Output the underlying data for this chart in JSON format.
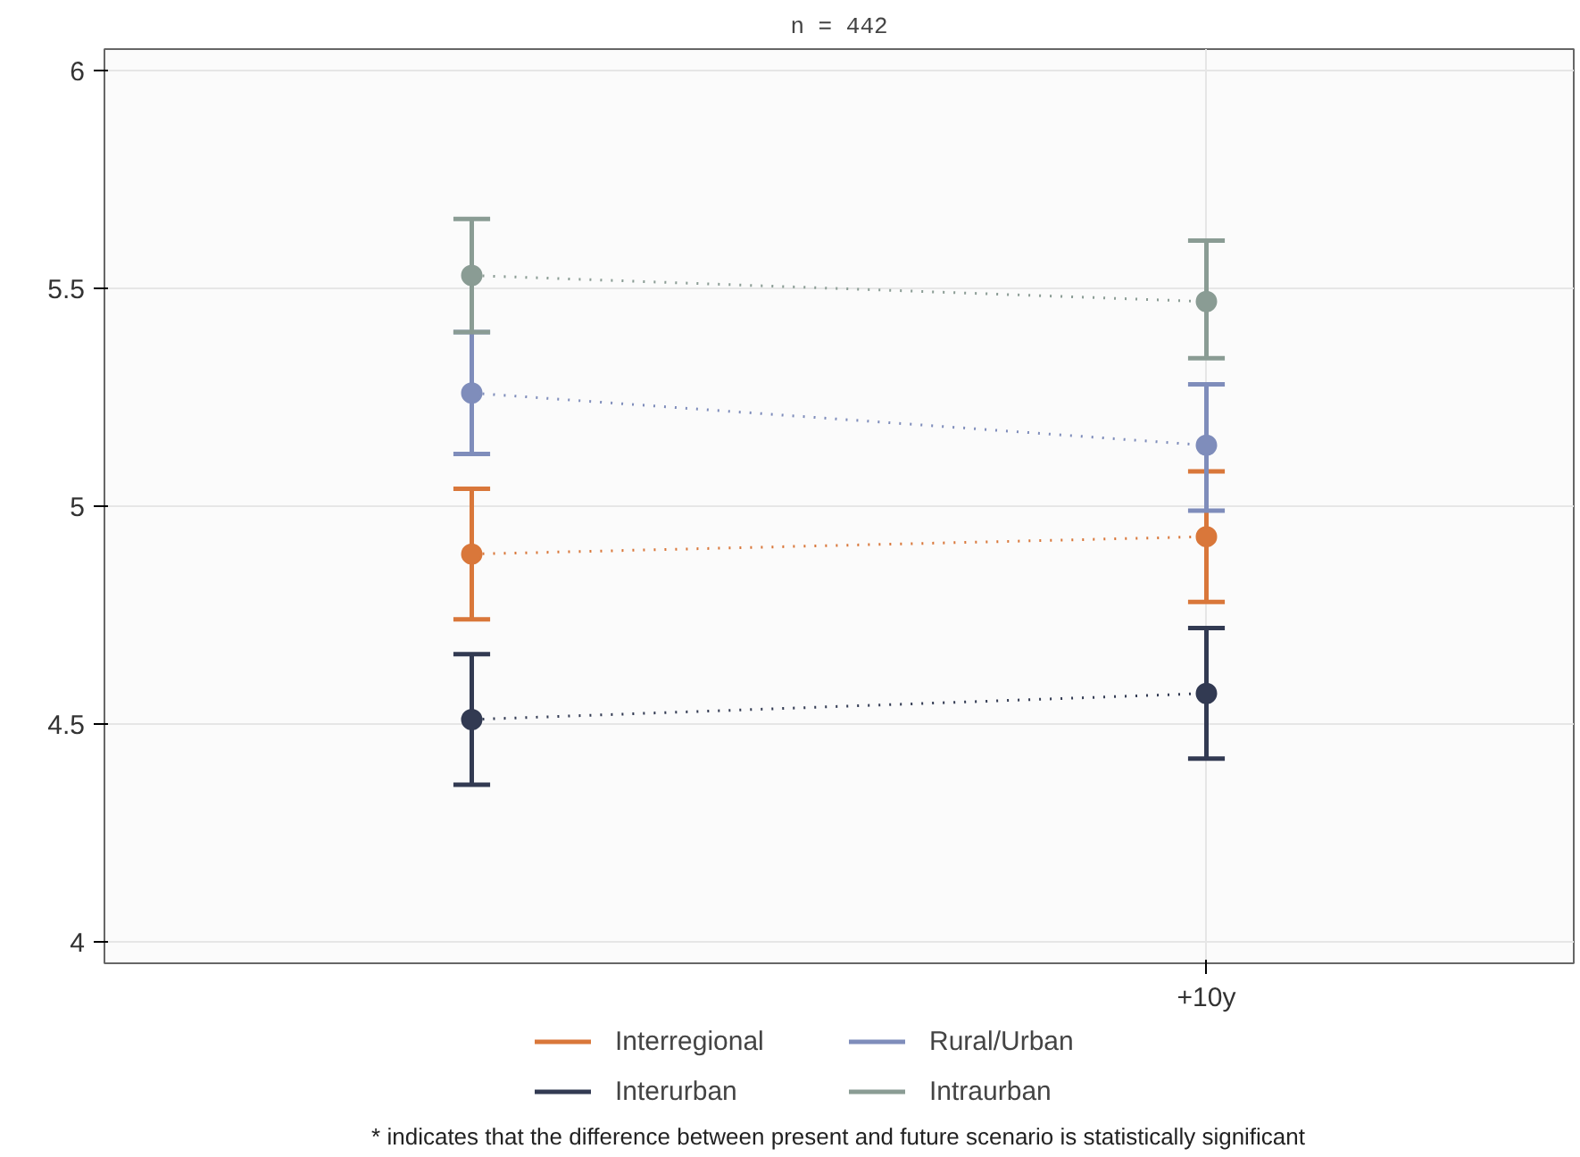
{
  "chart_data": {
    "type": "line",
    "title": "n = 442",
    "categories": [
      null,
      "+10y"
    ],
    "series": [
      {
        "name": "Interregional",
        "color": "#d9773a",
        "values": [
          4.89,
          4.93
        ],
        "errors": [
          [
            4.74,
            5.04
          ],
          [
            4.78,
            5.08
          ]
        ]
      },
      {
        "name": "Interurban",
        "color": "#323a52",
        "values": [
          4.51,
          4.57
        ],
        "errors": [
          [
            4.36,
            4.66
          ],
          [
            4.42,
            4.72
          ]
        ]
      },
      {
        "name": "Rural/Urban",
        "color": "#7f8dbb",
        "values": [
          5.26,
          5.14
        ],
        "errors": [
          [
            5.12,
            5.4
          ],
          [
            4.99,
            5.28
          ]
        ]
      },
      {
        "name": "Intraurban",
        "color": "#8a9c94",
        "values": [
          5.53,
          5.47
        ],
        "errors": [
          [
            5.4,
            5.66
          ],
          [
            5.34,
            5.61
          ]
        ]
      }
    ],
    "ylim": [
      3.95,
      6.05
    ],
    "yticks": [
      4,
      4.5,
      5,
      5.5,
      6
    ],
    "grid": true,
    "legend": "bottom",
    "marker": "circle",
    "line_style": "dotted",
    "annotations": [
      "* indicates that the difference between present and future scenario is statistically significant"
    ]
  }
}
